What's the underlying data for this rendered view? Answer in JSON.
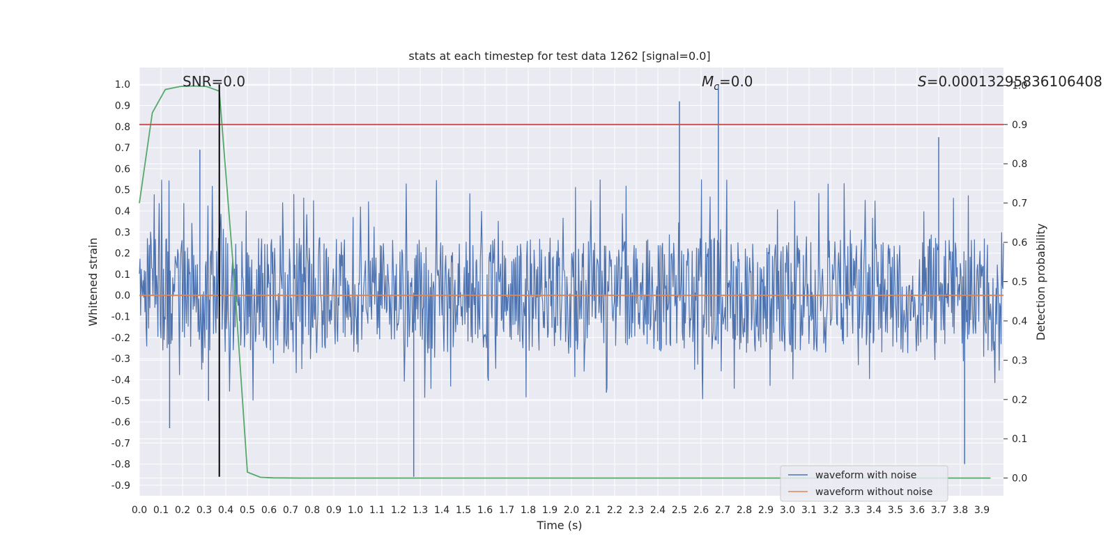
{
  "chart_data": {
    "type": "line",
    "title": "stats at each timestep for test data 1262 [signal=0.0]",
    "xlabel": "Time (s)",
    "ylabel": "Whitened strain",
    "y2label": "Detection probability",
    "xlim": [
      0.0,
      4.0
    ],
    "ylim": [
      -0.95,
      1.08
    ],
    "y2lim": [
      -0.045,
      1.045
    ],
    "x_ticks": [
      0.0,
      0.1,
      0.2,
      0.3,
      0.4,
      0.5,
      0.6,
      0.7,
      0.8,
      0.9,
      1.0,
      1.1,
      1.2,
      1.3,
      1.4,
      1.5,
      1.6,
      1.7,
      1.8,
      1.9,
      2.0,
      2.1,
      2.2,
      2.3,
      2.4,
      2.5,
      2.6,
      2.7,
      2.8,
      2.9,
      3.0,
      3.1,
      3.2,
      3.3,
      3.4,
      3.5,
      3.6,
      3.7,
      3.8,
      3.9
    ],
    "x_tick_labels": [
      "0.0",
      "0.1",
      "0.2",
      "0.3",
      "0.4",
      "0.5",
      "0.6",
      "0.7",
      "0.8",
      "0.9",
      "1.0",
      "1.1",
      "1.2",
      "1.3",
      "1.4",
      "1.5",
      "1.6",
      "1.7",
      "1.8",
      "1.9",
      "2.0",
      "2.1",
      "2.2",
      "2.3",
      "2.4",
      "2.5",
      "2.6",
      "2.7",
      "2.8",
      "2.9",
      "3.0",
      "3.1",
      "3.2",
      "3.3",
      "3.4",
      "3.5",
      "3.6",
      "3.7",
      "3.8",
      "3.9"
    ],
    "y_ticks": [
      1.0,
      0.9,
      0.8,
      0.7,
      0.6,
      0.5,
      0.4,
      0.3,
      0.2,
      0.1,
      0.0,
      -0.1,
      -0.2,
      -0.3,
      -0.4,
      -0.5,
      -0.6,
      -0.7,
      -0.8,
      -0.9
    ],
    "y_tick_labels": [
      "1.0",
      "0.9",
      "0.8",
      "0.7",
      "0.6",
      "0.5",
      "0.4",
      "0.3",
      "0.2",
      "0.1",
      "0.0",
      "-0.1",
      "-0.2",
      "-0.3",
      "-0.4",
      "-0.5",
      "-0.6",
      "-0.7",
      "-0.8",
      "-0.9"
    ],
    "y2_ticks": [
      1.0,
      0.9,
      0.8,
      0.7,
      0.6,
      0.5,
      0.4,
      0.3,
      0.2,
      0.1,
      0.0
    ],
    "y2_tick_labels": [
      "1.0",
      "0.9",
      "0.8",
      "0.7",
      "0.6",
      "0.5",
      "0.4",
      "0.3",
      "0.2",
      "0.1",
      "0.0"
    ],
    "grid": true,
    "legend": {
      "placement": "lower-right",
      "entries": [
        {
          "label": "waveform with noise",
          "color": "#4c72b0"
        },
        {
          "label": "waveform without noise",
          "color": "#dd8452"
        }
      ]
    },
    "annotations": {
      "snr": "SNR=0.0",
      "mc_symbol": "M",
      "mc_subscript": "c",
      "mc_value": "=0.0",
      "s_symbol": "S",
      "s_value": "=0.00013295836106408"
    },
    "series": [
      {
        "name": "waveform with noise",
        "axis": "left",
        "color": "#4c72b0",
        "kind": "noise",
        "x_range": [
          0.0,
          4.0
        ],
        "amplitude_typical": [
          -0.5,
          0.55
        ],
        "peaks": [
          [
            0.28,
            0.69
          ],
          [
            0.32,
            -0.5
          ],
          [
            1.27,
            -0.86
          ],
          [
            2.5,
            0.92
          ],
          [
            2.68,
            1.0
          ],
          [
            3.7,
            0.75
          ],
          [
            3.82,
            -0.8
          ],
          [
            0.14,
            -0.63
          ]
        ]
      },
      {
        "name": "waveform without noise",
        "axis": "left",
        "color": "#dd8452",
        "x": [
          0.0,
          4.0
        ],
        "y": [
          0.0,
          0.0
        ]
      },
      {
        "name": "detection probability",
        "axis": "right",
        "color": "#55a868",
        "x": [
          0.0,
          0.06,
          0.12,
          0.19,
          0.25,
          0.31,
          0.37,
          0.44,
          0.5,
          0.56,
          0.62,
          0.75,
          1.0,
          1.5,
          2.0,
          2.5,
          3.0,
          3.5,
          3.94
        ],
        "y": [
          0.7,
          0.93,
          0.989,
          0.997,
          0.998,
          0.997,
          0.985,
          0.5,
          0.015,
          0.002,
          0.0005,
          0.0,
          0.0,
          0.0,
          0.0,
          0.0,
          0.0,
          0.0,
          0.0
        ]
      },
      {
        "name": "threshold",
        "axis": "right",
        "color": "#c44e52",
        "x": [
          0.0,
          4.0
        ],
        "y": [
          0.9,
          0.9
        ]
      },
      {
        "name": "marker",
        "axis": "left",
        "color": "#000000",
        "x": [
          0.37,
          0.37
        ],
        "y": [
          -0.86,
          1.0
        ]
      }
    ]
  }
}
